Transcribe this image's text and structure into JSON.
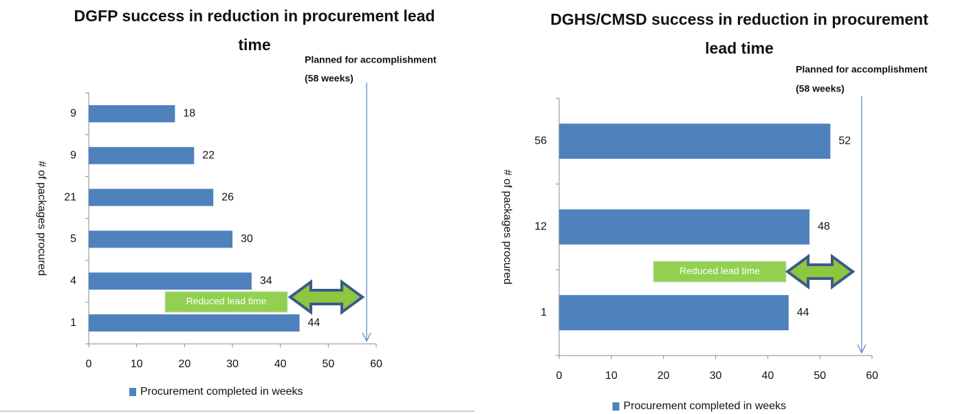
{
  "chart_data": [
    {
      "type": "bar",
      "orientation": "horizontal",
      "title": [
        "DGFP success in reduction in procurement lead",
        "time"
      ],
      "categories": [
        "1",
        "4",
        "5",
        "21",
        "9",
        "9"
      ],
      "series": [
        {
          "name": "Procurement completed in weeks",
          "color": "#4f81bd",
          "values": [
            44,
            34,
            30,
            26,
            22,
            18
          ]
        }
      ],
      "xlim": [
        0,
        60
      ],
      "xticks": [
        0,
        10,
        20,
        30,
        40,
        50,
        60
      ],
      "ylabel": "# of packages procured",
      "planned": {
        "value": 58,
        "label": [
          "Planned for accomplishment",
          "(58 weeks)"
        ]
      },
      "reduced_label": "Reduced lead time",
      "legend": "bottom"
    },
    {
      "type": "bar",
      "orientation": "horizontal",
      "title": [
        "DGHS/CMSD success in reduction in procurement",
        "lead time"
      ],
      "categories": [
        "1",
        "12",
        "56"
      ],
      "series": [
        {
          "name": "Procurement completed in weeks",
          "color": "#4f81bd",
          "values": [
            44,
            48,
            52
          ]
        }
      ],
      "xlim": [
        0,
        60
      ],
      "xticks": [
        0,
        10,
        20,
        30,
        40,
        50,
        60
      ],
      "ylabel": "# of packages procured",
      "planned": {
        "value": 58,
        "label": [
          "Planned for accomplishment",
          "(58 weeks)"
        ]
      },
      "reduced_label": "Reduced lead time",
      "legend": "bottom"
    }
  ]
}
